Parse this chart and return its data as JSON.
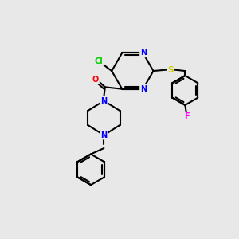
{
  "bg_color": "#e8e8e8",
  "bond_color": "#000000",
  "bond_lw": 1.5,
  "atom_colors": {
    "N": "#0000ff",
    "O": "#ff0000",
    "Cl": "#00cc00",
    "S": "#cccc00",
    "F": "#ff00ff",
    "C": "#000000"
  },
  "font_size": 7.0
}
